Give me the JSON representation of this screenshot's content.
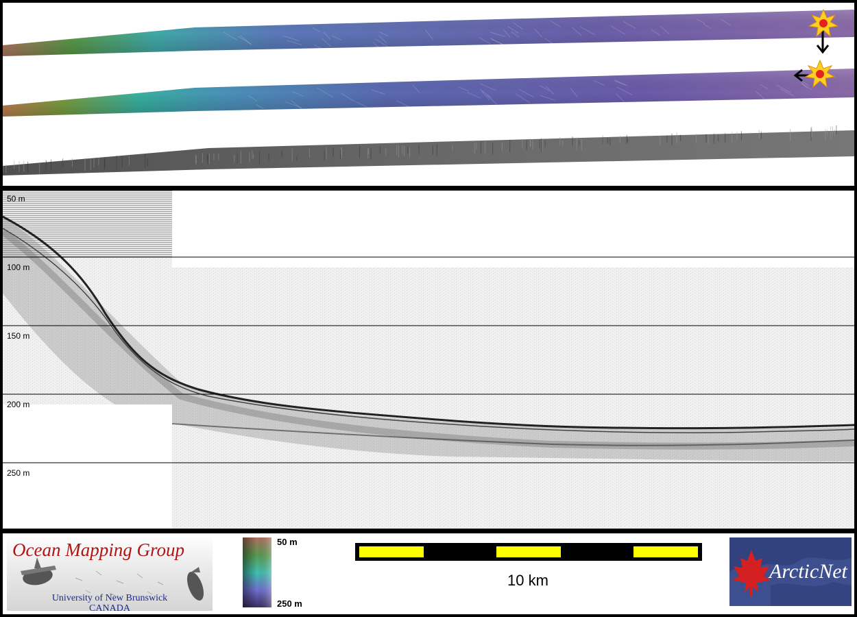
{
  "depth_ticks": [
    "50 m",
    "100 m",
    "150 m",
    "200 m",
    "250 m"
  ],
  "logo_ocean_mapping": {
    "title": "Ocean Mapping Group",
    "line1": "University of New Brunswick",
    "line2": "CANADA"
  },
  "colorbar": {
    "top_label": "50 m",
    "bottom_label": "250 m",
    "colors": [
      "#b07060",
      "#5a9a50",
      "#40c0b0",
      "#7070d0",
      "#3a3060"
    ]
  },
  "scale_bar": {
    "label": "10 km",
    "segment_color": "#ffff00",
    "background_color": "#000000"
  },
  "logo_arcticnet": {
    "text": "ArcticNet",
    "maple_leaf_color": "#d42020"
  },
  "markers": {
    "star_color": "#ffd020",
    "center_color": "#e82020"
  }
}
